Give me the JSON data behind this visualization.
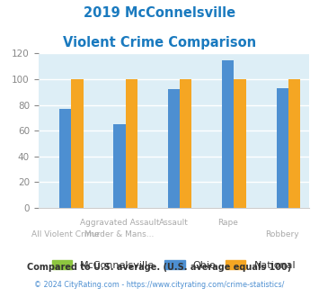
{
  "title_line1": "2019 McConnelsville",
  "title_line2": "Violent Crime Comparison",
  "title_color": "#1a7abf",
  "mcconnelsville": [
    0,
    0,
    0,
    0,
    0
  ],
  "ohio": [
    77,
    65,
    92,
    115,
    93
  ],
  "national": [
    100,
    100,
    100,
    100,
    100
  ],
  "colors": {
    "mcconnelsville": "#8dc63f",
    "ohio": "#4d8fd1",
    "national": "#f5a623"
  },
  "ylim": [
    0,
    120
  ],
  "yticks": [
    0,
    20,
    40,
    60,
    80,
    100,
    120
  ],
  "plot_bg": "#ddeef6",
  "fig_bg": "#ffffff",
  "legend_labels": [
    "McConnelsville",
    "Ohio",
    "National"
  ],
  "cat_top": [
    "",
    "Aggravated Assault",
    "Assault",
    "Rape",
    ""
  ],
  "cat_bot": [
    "All Violent Crime",
    "Murder & Mans...",
    "",
    "",
    "Robbery"
  ],
  "footer_line1": "Compared to U.S. average. (U.S. average equals 100)",
  "footer_line2": "© 2024 CityRating.com - https://www.cityrating.com/crime-statistics/",
  "footer1_color": "#333333",
  "footer2_color": "#4d8fd1",
  "grid_color": "#ffffff",
  "label_color": "#aaaaaa",
  "ytick_color": "#888888"
}
